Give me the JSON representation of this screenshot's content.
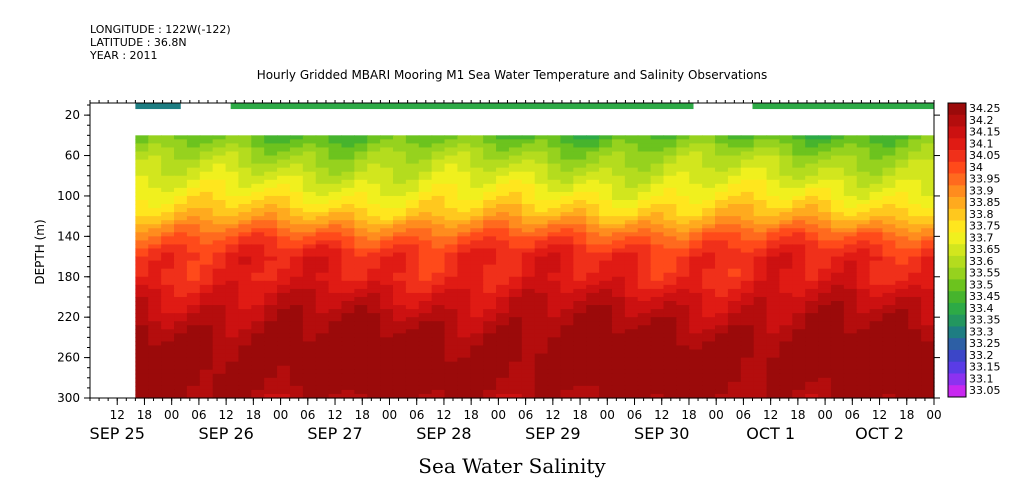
{
  "header": {
    "longitude": "LONGITUDE : 122W(-122)",
    "latitude": "LATITUDE : 36.8N",
    "year": "YEAR : 2011"
  },
  "chart_data": {
    "type": "heatmap",
    "title": "Hourly Gridded MBARI Mooring M1 Sea Water Temperature and Salinity Observations",
    "xlabel": "Sea Water Salinity",
    "ylabel": "DEPTH (m)",
    "y_ticks": [
      20,
      60,
      100,
      140,
      180,
      220,
      260,
      300
    ],
    "ylim": [
      300,
      8
    ],
    "xlim_hours": [
      0,
      186
    ],
    "hour_tick_labels": [
      "12",
      "18",
      "00",
      "06",
      "12",
      "18",
      "00",
      "06",
      "12",
      "18",
      "00",
      "06",
      "12",
      "18",
      "00",
      "06",
      "12",
      "18",
      "00",
      "06",
      "12",
      "18",
      "00",
      "06",
      "12",
      "18",
      "00",
      "06",
      "12",
      "18",
      "00"
    ],
    "date_labels": [
      {
        "text": "SEP 25",
        "hour": 6
      },
      {
        "text": "SEP 26",
        "hour": 30
      },
      {
        "text": "SEP 27",
        "hour": 54
      },
      {
        "text": "SEP 28",
        "hour": 78
      },
      {
        "text": "SEP 29",
        "hour": 102
      },
      {
        "text": "SEP 30",
        "hour": 126
      },
      {
        "text": "OCT   1",
        "hour": 150
      },
      {
        "text": "OCT   2",
        "hour": 174
      }
    ],
    "colorbar_levels": [
      "34.25",
      "34.2",
      "34.15",
      "34.1",
      "34.05",
      "34",
      "33.95",
      "33.9",
      "33.85",
      "33.8",
      "33.75",
      "33.7",
      "33.65",
      "33.6",
      "33.55",
      "33.5",
      "33.45",
      "33.4",
      "33.35",
      "33.3",
      "33.25",
      "33.2",
      "33.15",
      "33.1",
      "33.05"
    ],
    "colorbar_colors": [
      "#9b0a0a",
      "#b40d0d",
      "#cc1111",
      "#e01b14",
      "#f0301a",
      "#ff4a1a",
      "#ff6a1e",
      "#ff8c1e",
      "#ffaa1e",
      "#ffc81e",
      "#ffe61e",
      "#f0f01e",
      "#d2e61e",
      "#b4dc1e",
      "#96d21e",
      "#6cc31e",
      "#46b42d",
      "#2daa46",
      "#23965f",
      "#1e7d82",
      "#2d5fa5",
      "#3c46c8",
      "#5a3ce6",
      "#8c32f0",
      "#c828f0"
    ],
    "depth_profile": [
      {
        "depth": 10,
        "salinity": 33.35
      },
      {
        "depth": 40,
        "salinity": 33.45
      },
      {
        "depth": 60,
        "salinity": 33.55
      },
      {
        "depth": 80,
        "salinity": 33.62
      },
      {
        "depth": 100,
        "salinity": 33.7
      },
      {
        "depth": 120,
        "salinity": 33.8
      },
      {
        "depth": 140,
        "salinity": 33.95
      },
      {
        "depth": 160,
        "salinity": 34.05
      },
      {
        "depth": 180,
        "salinity": 34.05
      },
      {
        "depth": 200,
        "salinity": 34.12
      },
      {
        "depth": 220,
        "salinity": 34.17
      },
      {
        "depth": 240,
        "salinity": 34.22
      },
      {
        "depth": 260,
        "salinity": 34.25
      },
      {
        "depth": 280,
        "salinity": 34.25
      },
      {
        "depth": 300,
        "salinity": 34.2
      }
    ],
    "surface_band": {
      "depth_top": 8,
      "depth_bottom": 14,
      "segments": [
        {
          "start_hour": 10,
          "end_hour": 20,
          "salinity": 33.25
        },
        {
          "start_hour": 31,
          "end_hour": 133,
          "salinity": 33.35
        },
        {
          "start_hour": 146,
          "end_hour": 186,
          "salinity": 33.35
        }
      ]
    },
    "data_gap": {
      "depth_top": 14,
      "depth_bottom": 40
    },
    "data_start_hour": 10
  }
}
